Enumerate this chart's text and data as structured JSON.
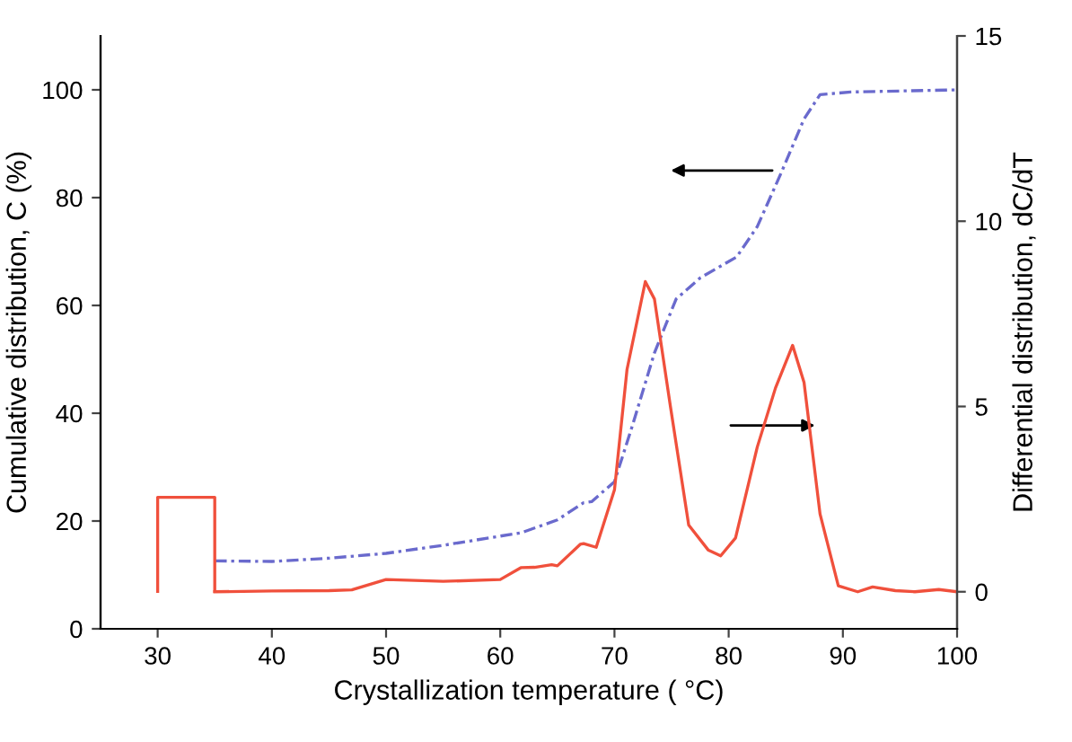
{
  "chart_data": {
    "type": "line",
    "xlabel": "Crystallization temperature ( °C)",
    "ylabel": "Cumulative distribution, C (%)",
    "y2label": "Differential distribution, dC/dT",
    "xlim": [
      25,
      100
    ],
    "xticks": [
      30,
      40,
      50,
      60,
      70,
      80,
      90,
      100
    ],
    "ylim": [
      0,
      110
    ],
    "yticks": [
      0,
      20,
      40,
      60,
      80,
      100
    ],
    "y2lim": [
      -1,
      15
    ],
    "y2ticks": [
      0,
      5,
      10,
      15
    ],
    "grid": false,
    "legend": false,
    "series": [
      {
        "color": "#6a6acd",
        "line_style": "dashed",
        "x": [
          35,
          40,
          45,
          50,
          55,
          60,
          61.8,
          65,
          67.3,
          68,
          70,
          71.6,
          73.5,
          75.4,
          77.5,
          80.7,
          82.5,
          84.6,
          86.6,
          88,
          90.7,
          100
        ],
        "values": [
          12.6,
          12.5,
          13.1,
          14,
          15.5,
          17.2,
          17.8,
          20.2,
          23.4,
          23.6,
          27.3,
          37.9,
          51.2,
          61.2,
          65.1,
          69,
          74.6,
          84.6,
          94.6,
          99.1,
          99.6,
          100
        ]
      },
      {
        "type": "step",
        "axis": "y2",
        "color": "#f0503c",
        "line_style": "solid",
        "x": [
          30,
          30,
          35,
          35
        ],
        "values": [
          0.01,
          2.55,
          2.55,
          0.01
        ]
      },
      {
        "axis": "y2",
        "color": "#f0503c",
        "line_style": "solid",
        "x": [
          35,
          40,
          45,
          47,
          50,
          55,
          60,
          61.8,
          63,
          64.5,
          65,
          67,
          67.3,
          68.4,
          70,
          71.1,
          72.7,
          73.5,
          74.9,
          76.5,
          78.2,
          79.3,
          80.6,
          82.5,
          84.1,
          85.6,
          86.6,
          88,
          89.6,
          91.3,
          92.6,
          94.6,
          96.3,
          98.4,
          100
        ],
        "values": [
          0,
          0.02,
          0.03,
          0.05,
          0.33,
          0.28,
          0.33,
          0.65,
          0.66,
          0.73,
          0.7,
          1.28,
          1.3,
          1.2,
          2.75,
          6,
          8.37,
          7.9,
          5,
          1.8,
          1.13,
          0.97,
          1.45,
          3.9,
          5.5,
          6.65,
          5.65,
          2.1,
          0.16,
          0,
          0.13,
          0.03,
          0,
          0.06,
          0
        ]
      }
    ]
  }
}
